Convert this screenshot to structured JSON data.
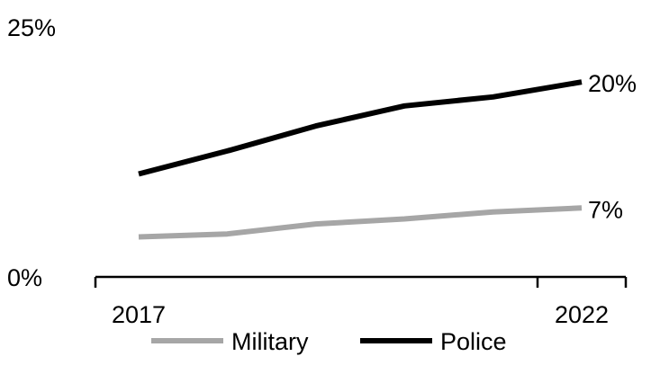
{
  "chart_data": {
    "type": "line",
    "title": "",
    "xlabel": "",
    "ylabel": "",
    "x": [
      2017,
      2018,
      2019,
      2020,
      2021,
      2022
    ],
    "x_tick_labels": [
      "2017",
      "2022"
    ],
    "y_tick_labels": [
      "25%",
      "0%"
    ],
    "ylim": [
      0,
      25
    ],
    "grid": false,
    "legend": {
      "placement": "bottom"
    },
    "series": [
      {
        "name": "Military",
        "color": "#a6a6a6",
        "values": [
          4.0,
          4.3,
          5.3,
          5.8,
          6.5,
          6.9
        ],
        "end_label": "7%"
      },
      {
        "name": "Police",
        "color": "#000000",
        "values": [
          10.3,
          12.6,
          15.1,
          17.1,
          18.0,
          19.5
        ],
        "end_label": "20%"
      }
    ]
  }
}
